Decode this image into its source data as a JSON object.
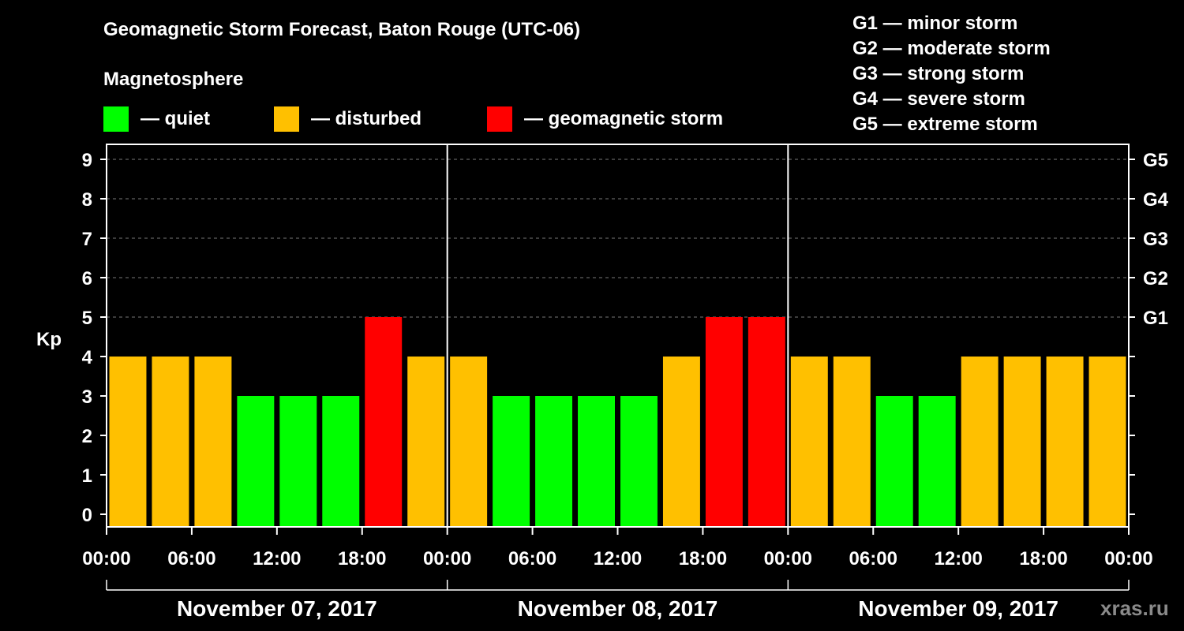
{
  "title": "Geomagnetic Storm Forecast, Baton Rouge (UTC-06)",
  "magnetosphere": {
    "title": "Magnetosphere",
    "legend": [
      {
        "label": "— quiet",
        "color": "#00ff00"
      },
      {
        "label": "— disturbed",
        "color": "#ffc000"
      },
      {
        "label": "— geomagnetic storm",
        "color": "#ff0000"
      }
    ]
  },
  "storm_scale": [
    "G1 — minor storm",
    "G2 — moderate storm",
    "G3 — strong storm",
    "G4 — severe storm",
    "G5 — extreme storm"
  ],
  "watermark": "xras.ru",
  "chart_data": {
    "type": "bar",
    "ylabel": "Kp",
    "ylim": [
      0,
      9
    ],
    "yticks": [
      "0",
      "1",
      "2",
      "3",
      "4",
      "5",
      "6",
      "7",
      "8",
      "9"
    ],
    "right_axis": [
      {
        "kp": 5,
        "label": "G1"
      },
      {
        "kp": 6,
        "label": "G2"
      },
      {
        "kp": 7,
        "label": "G3"
      },
      {
        "kp": 8,
        "label": "G4"
      },
      {
        "kp": 9,
        "label": "G5"
      }
    ],
    "x_tick_labels": [
      "00:00",
      "06:00",
      "12:00",
      "18:00",
      "00:00",
      "06:00",
      "12:00",
      "18:00",
      "00:00",
      "06:00",
      "12:00",
      "18:00",
      "00:00"
    ],
    "days": [
      "November 07, 2017",
      "November 08, 2017",
      "November 09, 2017"
    ],
    "values": [
      4,
      4,
      4,
      3,
      3,
      3,
      5,
      4,
      4,
      3,
      3,
      3,
      3,
      4,
      5,
      5,
      4,
      4,
      3,
      3,
      4,
      4,
      4,
      4
    ],
    "color_levels": {
      "quiet_max": 3,
      "disturbed": 4,
      "storm_min": 5
    },
    "colors": {
      "quiet": "#00ff00",
      "disturbed": "#ffc000",
      "storm": "#ff0000"
    }
  }
}
